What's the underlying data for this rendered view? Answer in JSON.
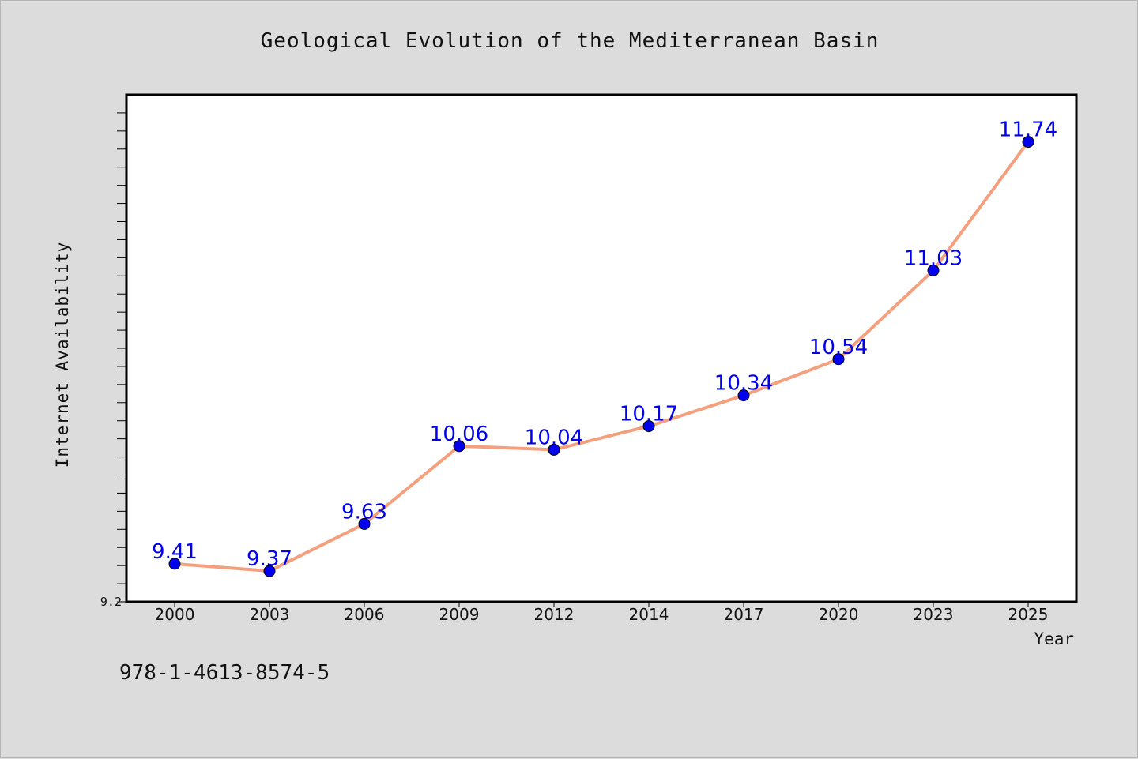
{
  "chart_data": {
    "type": "line",
    "title": "Geological Evolution of the Mediterranean Basin",
    "xlabel": "Year",
    "ylabel": "Internet Availability",
    "categories": [
      "2000",
      "2003",
      "2006",
      "2009",
      "2012",
      "2014",
      "2017",
      "2020",
      "2023",
      "2025"
    ],
    "series": [
      {
        "values": [
          9.41,
          9.37,
          9.63,
          10.06,
          10.04,
          10.17,
          10.34,
          10.54,
          11.03,
          11.74
        ],
        "labels": [
          "9.41",
          "9.37",
          "9.63",
          "10.06",
          "10.04",
          "10.17",
          "10.34",
          "10.54",
          "11.03",
          "11.74"
        ]
      }
    ],
    "ylim": [
      9.2,
      12.0
    ],
    "yticks_labeled": [
      "9.2"
    ],
    "grid": false,
    "colors": {
      "line": "#f4a07e",
      "marker": "#0000ee",
      "data_label": "#0000ee",
      "plot_background": "#ffffff",
      "figure_background": "#dcdcdc"
    }
  },
  "footer": {
    "isbn": "978-1-4613-8574-5"
  }
}
